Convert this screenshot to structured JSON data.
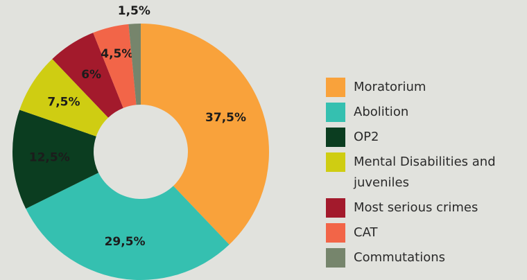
{
  "chart_data": {
    "type": "donut",
    "categories": [
      "Moratorium",
      "Abolition",
      "OP2",
      "Mental Disabilities and juveniles",
      "Most serious crimes",
      "CAT",
      "Commutations"
    ],
    "values": [
      37.5,
      29.5,
      12.5,
      7.5,
      6,
      4.5,
      1.5
    ],
    "value_labels": [
      "37,5%",
      "29,5%",
      "12,5%",
      "7,5%",
      "6%",
      "4,5%",
      "1,5%"
    ],
    "colors": [
      "#f9a23b",
      "#35c0b0",
      "#0b3d20",
      "#cfcd12",
      "#a31a2c",
      "#f26548",
      "#76856c"
    ],
    "legend": "right"
  }
}
